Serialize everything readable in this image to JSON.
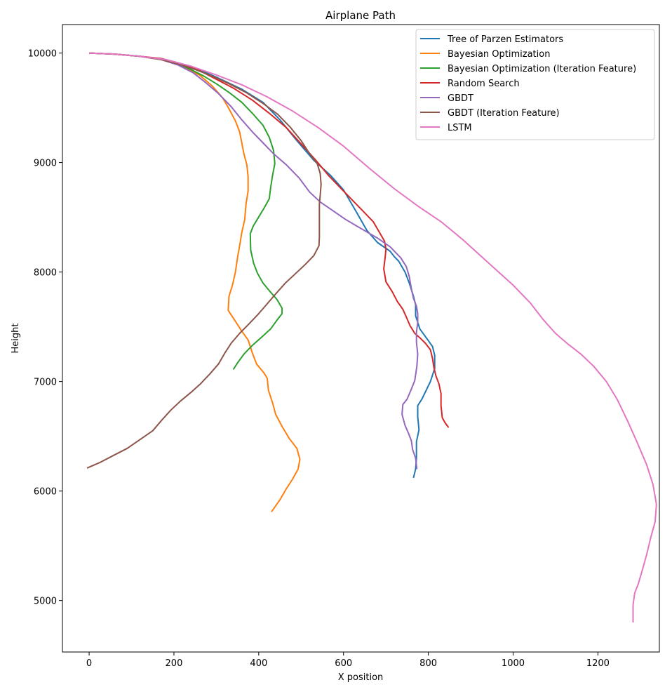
{
  "chart_data": {
    "type": "line",
    "title": "Airplane Path",
    "xlabel": "X position",
    "ylabel": "Height",
    "xlim": [
      -63,
      1345
    ],
    "ylim": [
      4530,
      10260
    ],
    "xticks": [
      0,
      200,
      400,
      600,
      800,
      1000,
      1200
    ],
    "yticks": [
      5000,
      6000,
      7000,
      8000,
      9000,
      10000
    ],
    "grid": false,
    "legend_position": "top-right",
    "series": [
      {
        "name": "Tree of Parzen Estimators",
        "color": "#1f77b4",
        "points": [
          [
            0,
            10000
          ],
          [
            60,
            9990
          ],
          [
            120,
            9970
          ],
          [
            180,
            9940
          ],
          [
            240,
            9880
          ],
          [
            300,
            9780
          ],
          [
            360,
            9670
          ],
          [
            410,
            9550
          ],
          [
            450,
            9390
          ],
          [
            490,
            9200
          ],
          [
            530,
            9020
          ],
          [
            570,
            8880
          ],
          [
            600,
            8750
          ],
          [
            630,
            8550
          ],
          [
            655,
            8380
          ],
          [
            680,
            8270
          ],
          [
            710,
            8190
          ],
          [
            720,
            8140
          ],
          [
            730,
            8100
          ],
          [
            745,
            8000
          ],
          [
            755,
            7900
          ],
          [
            765,
            7780
          ],
          [
            770,
            7700
          ],
          [
            770,
            7600
          ],
          [
            780,
            7480
          ],
          [
            795,
            7400
          ],
          [
            810,
            7320
          ],
          [
            815,
            7240
          ],
          [
            815,
            7120
          ],
          [
            805,
            7000
          ],
          [
            795,
            6920
          ],
          [
            785,
            6840
          ],
          [
            775,
            6780
          ],
          [
            775,
            6680
          ],
          [
            778,
            6560
          ],
          [
            772,
            6450
          ],
          [
            772,
            6300
          ],
          [
            770,
            6200
          ],
          [
            765,
            6120
          ]
        ]
      },
      {
        "name": "Bayesian Optimization",
        "color": "#ff7f0e",
        "points": [
          [
            0,
            10000
          ],
          [
            60,
            9990
          ],
          [
            120,
            9970
          ],
          [
            170,
            9940
          ],
          [
            220,
            9880
          ],
          [
            260,
            9800
          ],
          [
            290,
            9700
          ],
          [
            315,
            9590
          ],
          [
            330,
            9490
          ],
          [
            345,
            9380
          ],
          [
            355,
            9280
          ],
          [
            360,
            9180
          ],
          [
            365,
            9080
          ],
          [
            372,
            8980
          ],
          [
            375,
            8870
          ],
          [
            375,
            8740
          ],
          [
            370,
            8620
          ],
          [
            367,
            8480
          ],
          [
            360,
            8360
          ],
          [
            355,
            8240
          ],
          [
            350,
            8130
          ],
          [
            345,
            8000
          ],
          [
            338,
            7880
          ],
          [
            330,
            7780
          ],
          [
            328,
            7650
          ],
          [
            345,
            7550
          ],
          [
            360,
            7460
          ],
          [
            375,
            7380
          ],
          [
            385,
            7260
          ],
          [
            395,
            7160
          ],
          [
            412,
            7080
          ],
          [
            420,
            7030
          ],
          [
            423,
            6920
          ],
          [
            433,
            6800
          ],
          [
            440,
            6700
          ],
          [
            455,
            6590
          ],
          [
            472,
            6480
          ],
          [
            490,
            6390
          ],
          [
            497,
            6290
          ],
          [
            493,
            6200
          ],
          [
            480,
            6110
          ],
          [
            465,
            6020
          ],
          [
            450,
            5920
          ],
          [
            430,
            5810
          ]
        ]
      },
      {
        "name": "Bayesian Optimization (Iteration Feature)",
        "color": "#2ca02c",
        "points": [
          [
            0,
            10000
          ],
          [
            60,
            9990
          ],
          [
            120,
            9970
          ],
          [
            170,
            9940
          ],
          [
            210,
            9900
          ],
          [
            240,
            9850
          ],
          [
            270,
            9790
          ],
          [
            300,
            9720
          ],
          [
            330,
            9640
          ],
          [
            360,
            9550
          ],
          [
            385,
            9450
          ],
          [
            410,
            9340
          ],
          [
            425,
            9230
          ],
          [
            435,
            9110
          ],
          [
            438,
            8990
          ],
          [
            432,
            8870
          ],
          [
            428,
            8770
          ],
          [
            425,
            8670
          ],
          [
            412,
            8580
          ],
          [
            398,
            8490
          ],
          [
            387,
            8420
          ],
          [
            380,
            8350
          ],
          [
            381,
            8200
          ],
          [
            388,
            8080
          ],
          [
            397,
            7990
          ],
          [
            410,
            7900
          ],
          [
            427,
            7820
          ],
          [
            443,
            7750
          ],
          [
            455,
            7670
          ],
          [
            455,
            7620
          ],
          [
            443,
            7560
          ],
          [
            428,
            7480
          ],
          [
            408,
            7410
          ],
          [
            385,
            7330
          ],
          [
            365,
            7250
          ],
          [
            350,
            7170
          ],
          [
            340,
            7110
          ]
        ]
      },
      {
        "name": "Random Search",
        "color": "#d62728",
        "points": [
          [
            0,
            10000
          ],
          [
            60,
            9990
          ],
          [
            120,
            9970
          ],
          [
            170,
            9950
          ],
          [
            210,
            9910
          ],
          [
            250,
            9860
          ],
          [
            290,
            9780
          ],
          [
            340,
            9680
          ],
          [
            385,
            9570
          ],
          [
            425,
            9450
          ],
          [
            465,
            9320
          ],
          [
            500,
            9170
          ],
          [
            535,
            9020
          ],
          [
            565,
            8880
          ],
          [
            600,
            8740
          ],
          [
            640,
            8580
          ],
          [
            670,
            8460
          ],
          [
            685,
            8360
          ],
          [
            697,
            8280
          ],
          [
            700,
            8210
          ],
          [
            698,
            8130
          ],
          [
            695,
            8030
          ],
          [
            700,
            7910
          ],
          [
            715,
            7820
          ],
          [
            727,
            7730
          ],
          [
            740,
            7660
          ],
          [
            748,
            7590
          ],
          [
            757,
            7510
          ],
          [
            768,
            7440
          ],
          [
            780,
            7400
          ],
          [
            793,
            7350
          ],
          [
            805,
            7290
          ],
          [
            810,
            7210
          ],
          [
            813,
            7130
          ],
          [
            818,
            7050
          ],
          [
            825,
            6980
          ],
          [
            830,
            6890
          ],
          [
            830,
            6780
          ],
          [
            833,
            6670
          ],
          [
            840,
            6620
          ],
          [
            848,
            6580
          ]
        ]
      },
      {
        "name": "GBDT",
        "color": "#9467bd",
        "points": [
          [
            0,
            10000
          ],
          [
            60,
            9990
          ],
          [
            120,
            9970
          ],
          [
            170,
            9940
          ],
          [
            210,
            9890
          ],
          [
            245,
            9820
          ],
          [
            275,
            9730
          ],
          [
            305,
            9630
          ],
          [
            335,
            9510
          ],
          [
            360,
            9390
          ],
          [
            385,
            9280
          ],
          [
            410,
            9180
          ],
          [
            435,
            9080
          ],
          [
            465,
            8980
          ],
          [
            495,
            8860
          ],
          [
            520,
            8730
          ],
          [
            545,
            8640
          ],
          [
            575,
            8560
          ],
          [
            605,
            8480
          ],
          [
            640,
            8400
          ],
          [
            680,
            8310
          ],
          [
            710,
            8230
          ],
          [
            735,
            8130
          ],
          [
            748,
            8050
          ],
          [
            755,
            7960
          ],
          [
            760,
            7850
          ],
          [
            765,
            7760
          ],
          [
            772,
            7690
          ],
          [
            775,
            7620
          ],
          [
            775,
            7540
          ],
          [
            772,
            7450
          ],
          [
            772,
            7360
          ],
          [
            775,
            7250
          ],
          [
            773,
            7140
          ],
          [
            768,
            7010
          ],
          [
            760,
            6930
          ],
          [
            750,
            6840
          ],
          [
            740,
            6790
          ],
          [
            738,
            6700
          ],
          [
            745,
            6600
          ],
          [
            753,
            6530
          ],
          [
            760,
            6460
          ],
          [
            763,
            6380
          ],
          [
            770,
            6300
          ],
          [
            773,
            6200
          ]
        ]
      },
      {
        "name": "GBDT (Iteration Feature)",
        "color": "#8c564b",
        "points": [
          [
            0,
            10000
          ],
          [
            60,
            9990
          ],
          [
            120,
            9970
          ],
          [
            170,
            9940
          ],
          [
            210,
            9900
          ],
          [
            250,
            9850
          ],
          [
            290,
            9790
          ],
          [
            330,
            9720
          ],
          [
            370,
            9640
          ],
          [
            410,
            9540
          ],
          [
            445,
            9440
          ],
          [
            475,
            9320
          ],
          [
            500,
            9200
          ],
          [
            520,
            9080
          ],
          [
            538,
            8990
          ],
          [
            545,
            8900
          ],
          [
            547,
            8800
          ],
          [
            545,
            8700
          ],
          [
            543,
            8620
          ],
          [
            543,
            8520
          ],
          [
            543,
            8420
          ],
          [
            543,
            8320
          ],
          [
            542,
            8240
          ],
          [
            530,
            8150
          ],
          [
            510,
            8070
          ],
          [
            488,
            7990
          ],
          [
            463,
            7900
          ],
          [
            440,
            7800
          ],
          [
            420,
            7710
          ],
          [
            400,
            7620
          ],
          [
            378,
            7530
          ],
          [
            355,
            7440
          ],
          [
            335,
            7350
          ],
          [
            320,
            7260
          ],
          [
            305,
            7160
          ],
          [
            285,
            7070
          ],
          [
            263,
            6980
          ],
          [
            240,
            6900
          ],
          [
            215,
            6820
          ],
          [
            193,
            6740
          ],
          [
            172,
            6650
          ],
          [
            150,
            6550
          ],
          [
            120,
            6470
          ],
          [
            90,
            6390
          ],
          [
            55,
            6320
          ],
          [
            25,
            6260
          ],
          [
            -5,
            6210
          ]
        ]
      },
      {
        "name": "LSTM",
        "color": "#e377c2",
        "points": [
          [
            0,
            10000
          ],
          [
            60,
            9990
          ],
          [
            120,
            9970
          ],
          [
            180,
            9940
          ],
          [
            240,
            9880
          ],
          [
            300,
            9800
          ],
          [
            360,
            9710
          ],
          [
            420,
            9600
          ],
          [
            480,
            9470
          ],
          [
            540,
            9320
          ],
          [
            600,
            9150
          ],
          [
            660,
            8950
          ],
          [
            720,
            8760
          ],
          [
            780,
            8590
          ],
          [
            830,
            8460
          ],
          [
            880,
            8300
          ],
          [
            920,
            8160
          ],
          [
            960,
            8020
          ],
          [
            1000,
            7880
          ],
          [
            1040,
            7720
          ],
          [
            1070,
            7570
          ],
          [
            1100,
            7440
          ],
          [
            1130,
            7340
          ],
          [
            1160,
            7250
          ],
          [
            1190,
            7140
          ],
          [
            1220,
            7000
          ],
          [
            1245,
            6840
          ],
          [
            1270,
            6640
          ],
          [
            1293,
            6440
          ],
          [
            1315,
            6240
          ],
          [
            1330,
            6060
          ],
          [
            1338,
            5880
          ],
          [
            1335,
            5720
          ],
          [
            1325,
            5580
          ],
          [
            1315,
            5420
          ],
          [
            1305,
            5280
          ],
          [
            1295,
            5150
          ],
          [
            1287,
            5070
          ],
          [
            1283,
            4960
          ],
          [
            1283,
            4800
          ]
        ]
      }
    ]
  }
}
